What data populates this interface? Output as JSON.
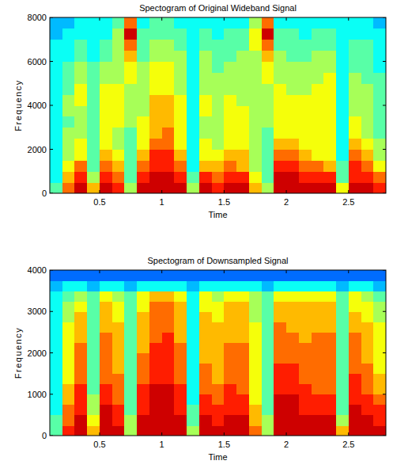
{
  "chart_data": [
    {
      "type": "heatmap",
      "title": "Spectogram of Original Wideband Signal",
      "xlabel": "Time",
      "ylabel": "Frequency",
      "x": [
        0.15,
        0.25,
        0.35,
        0.45,
        0.55,
        0.65,
        0.75,
        0.85,
        0.95,
        1.05,
        1.15,
        1.25,
        1.35,
        1.45,
        1.55,
        1.65,
        1.75,
        1.85,
        1.95,
        2.05,
        2.15,
        2.25,
        2.35,
        2.45,
        2.55,
        2.65,
        2.75
      ],
      "y": [
        250,
        750,
        1250,
        1750,
        2250,
        2750,
        3250,
        3750,
        4250,
        4750,
        5250,
        5750,
        6250,
        6750,
        7250,
        7750
      ],
      "values": [
        [
          4,
          3,
          3,
          3,
          3,
          3,
          3,
          3,
          3,
          3,
          3,
          3,
          3,
          3,
          2,
          2
        ],
        [
          8,
          7,
          6,
          5,
          5,
          5,
          4,
          5,
          5,
          4,
          4,
          4,
          3,
          3,
          3,
          2
        ],
        [
          10,
          9,
          8,
          6,
          6,
          5,
          5,
          5,
          6,
          6,
          5,
          5,
          4,
          4,
          3,
          3
        ],
        [
          7,
          5,
          4,
          4,
          4,
          4,
          4,
          4,
          4,
          4,
          4,
          4,
          3,
          3,
          3,
          3
        ],
        [
          10,
          9,
          8,
          7,
          6,
          6,
          6,
          6,
          6,
          6,
          5,
          5,
          4,
          4,
          3,
          3
        ],
        [
          9,
          8,
          7,
          6,
          5,
          5,
          6,
          6,
          6,
          6,
          5,
          5,
          5,
          5,
          5,
          4
        ],
        [
          5,
          4,
          4,
          4,
          4,
          4,
          5,
          5,
          5,
          5,
          6,
          6,
          7,
          8,
          10,
          8
        ],
        [
          10,
          9,
          8,
          7,
          6,
          6,
          6,
          5,
          5,
          5,
          5,
          5,
          4,
          4,
          4,
          3
        ],
        [
          10,
          10,
          9,
          9,
          8,
          7,
          7,
          7,
          7,
          6,
          6,
          6,
          5,
          5,
          4,
          4
        ],
        [
          10,
          10,
          9,
          9,
          8,
          8,
          7,
          7,
          7,
          6,
          6,
          6,
          5,
          5,
          4,
          4
        ],
        [
          10,
          9,
          8,
          7,
          6,
          6,
          6,
          6,
          6,
          5,
          5,
          5,
          5,
          4,
          4,
          3
        ],
        [
          5,
          4,
          3,
          3,
          3,
          3,
          3,
          3,
          3,
          3,
          3,
          3,
          3,
          3,
          3,
          3
        ],
        [
          10,
          9,
          7,
          6,
          6,
          5,
          5,
          6,
          6,
          5,
          5,
          5,
          5,
          4,
          4,
          3
        ],
        [
          9,
          8,
          7,
          6,
          5,
          5,
          5,
          5,
          5,
          5,
          5,
          4,
          4,
          4,
          3,
          3
        ],
        [
          10,
          9,
          8,
          7,
          6,
          6,
          6,
          6,
          6,
          5,
          5,
          5,
          4,
          4,
          4,
          3
        ],
        [
          10,
          9,
          7,
          7,
          6,
          6,
          6,
          6,
          5,
          5,
          5,
          5,
          5,
          4,
          4,
          3
        ],
        [
          7,
          6,
          5,
          5,
          5,
          5,
          5,
          5,
          5,
          5,
          5,
          5,
          5,
          6,
          6,
          5
        ],
        [
          5,
          4,
          4,
          4,
          4,
          4,
          5,
          5,
          5,
          5,
          6,
          6,
          7,
          8,
          10,
          8
        ],
        [
          10,
          10,
          9,
          8,
          7,
          6,
          6,
          6,
          6,
          6,
          5,
          5,
          5,
          4,
          4,
          3
        ],
        [
          10,
          10,
          9,
          8,
          7,
          6,
          6,
          6,
          6,
          5,
          5,
          5,
          4,
          4,
          4,
          3
        ],
        [
          10,
          9,
          8,
          7,
          6,
          6,
          6,
          6,
          6,
          5,
          5,
          5,
          4,
          4,
          3,
          3
        ],
        [
          10,
          9,
          8,
          6,
          6,
          6,
          6,
          6,
          6,
          6,
          5,
          5,
          5,
          4,
          4,
          3
        ],
        [
          10,
          9,
          7,
          6,
          6,
          6,
          6,
          6,
          6,
          6,
          6,
          5,
          5,
          4,
          4,
          3
        ],
        [
          6,
          4,
          4,
          3,
          3,
          3,
          3,
          3,
          3,
          3,
          3,
          3,
          3,
          3,
          3,
          3
        ],
        [
          10,
          9,
          9,
          8,
          7,
          6,
          6,
          5,
          5,
          5,
          5,
          4,
          4,
          4,
          3,
          3
        ],
        [
          10,
          9,
          8,
          7,
          6,
          5,
          5,
          5,
          5,
          5,
          4,
          4,
          4,
          4,
          3,
          3
        ],
        [
          9,
          8,
          6,
          5,
          5,
          4,
          4,
          4,
          4,
          4,
          4,
          3,
          3,
          3,
          3,
          2
        ]
      ],
      "xlim": [
        0.1,
        2.8
      ],
      "ylim": [
        0,
        8000
      ],
      "xticks": [
        0.5,
        1,
        1.5,
        2,
        2.5
      ],
      "yticks": [
        0,
        2000,
        4000,
        6000,
        8000
      ],
      "clim": [
        -2,
        11
      ]
    },
    {
      "type": "heatmap",
      "title": "Spectogram of Downsampled Signal",
      "xlabel": "Time",
      "ylabel": "Frequency",
      "x": [
        0.15,
        0.25,
        0.35,
        0.45,
        0.55,
        0.65,
        0.75,
        0.85,
        0.95,
        1.05,
        1.15,
        1.25,
        1.35,
        1.45,
        1.55,
        1.65,
        1.75,
        1.85,
        1.95,
        2.05,
        2.15,
        2.25,
        2.35,
        2.45,
        2.55,
        2.65,
        2.75
      ],
      "y": [
        125,
        375,
        625,
        875,
        1125,
        1375,
        1625,
        1875,
        2125,
        2375,
        2625,
        2875,
        3125,
        3375,
        3625,
        3875
      ],
      "values": [
        [
          4,
          4,
          3,
          3,
          3,
          3,
          3,
          3,
          3,
          3,
          3,
          3,
          3,
          3,
          2,
          1
        ],
        [
          9,
          8,
          8,
          7,
          7,
          6,
          6,
          6,
          6,
          6,
          6,
          5,
          5,
          4,
          3,
          1
        ],
        [
          10,
          10,
          9,
          9,
          9,
          8,
          8,
          8,
          8,
          7,
          7,
          7,
          6,
          5,
          3,
          1
        ],
        [
          7,
          6,
          5,
          5,
          4,
          4,
          4,
          4,
          4,
          4,
          4,
          4,
          4,
          4,
          2,
          1
        ],
        [
          10,
          10,
          10,
          9,
          9,
          8,
          8,
          8,
          8,
          8,
          7,
          7,
          7,
          6,
          3,
          1
        ],
        [
          10,
          9,
          9,
          8,
          8,
          8,
          7,
          7,
          7,
          7,
          7,
          6,
          6,
          5,
          3,
          1
        ],
        [
          5,
          5,
          4,
          4,
          4,
          4,
          4,
          4,
          4,
          4,
          4,
          4,
          4,
          4,
          2,
          1
        ],
        [
          10,
          10,
          9,
          9,
          9,
          8,
          8,
          8,
          7,
          7,
          7,
          7,
          6,
          6,
          3,
          1
        ],
        [
          10,
          10,
          10,
          10,
          10,
          9,
          9,
          9,
          9,
          8,
          8,
          8,
          8,
          7,
          3,
          1
        ],
        [
          10,
          10,
          10,
          10,
          10,
          9,
          9,
          9,
          9,
          9,
          8,
          8,
          8,
          7,
          3,
          1
        ],
        [
          10,
          10,
          9,
          9,
          9,
          8,
          8,
          8,
          8,
          7,
          7,
          7,
          7,
          6,
          3,
          1
        ],
        [
          5,
          4,
          4,
          3,
          3,
          3,
          3,
          3,
          3,
          3,
          3,
          3,
          3,
          3,
          2,
          1
        ],
        [
          10,
          10,
          9,
          9,
          8,
          8,
          8,
          7,
          7,
          7,
          7,
          7,
          6,
          6,
          3,
          1
        ],
        [
          10,
          9,
          9,
          8,
          8,
          7,
          7,
          7,
          7,
          7,
          7,
          6,
          6,
          5,
          3,
          1
        ],
        [
          10,
          10,
          9,
          9,
          9,
          8,
          8,
          8,
          8,
          7,
          7,
          7,
          7,
          6,
          3,
          1
        ],
        [
          10,
          10,
          9,
          9,
          8,
          8,
          8,
          8,
          8,
          7,
          7,
          7,
          7,
          6,
          3,
          1
        ],
        [
          8,
          7,
          7,
          6,
          6,
          6,
          6,
          6,
          6,
          6,
          6,
          5,
          5,
          5,
          3,
          1
        ],
        [
          5,
          5,
          4,
          4,
          4,
          4,
          4,
          4,
          4,
          4,
          4,
          4,
          4,
          4,
          2,
          1
        ],
        [
          10,
          10,
          10,
          10,
          9,
          9,
          9,
          8,
          8,
          8,
          8,
          7,
          7,
          6,
          3,
          1
        ],
        [
          10,
          10,
          10,
          10,
          9,
          9,
          9,
          8,
          8,
          8,
          7,
          7,
          7,
          6,
          3,
          1
        ],
        [
          10,
          10,
          9,
          9,
          9,
          8,
          8,
          8,
          8,
          7,
          7,
          7,
          7,
          6,
          3,
          1
        ],
        [
          10,
          10,
          9,
          9,
          8,
          8,
          8,
          8,
          8,
          8,
          7,
          7,
          7,
          6,
          3,
          1
        ],
        [
          10,
          10,
          9,
          9,
          8,
          8,
          8,
          8,
          8,
          8,
          7,
          7,
          7,
          6,
          3,
          1
        ],
        [
          7,
          5,
          4,
          4,
          4,
          4,
          4,
          4,
          4,
          4,
          4,
          4,
          4,
          4,
          2,
          1
        ],
        [
          10,
          10,
          10,
          9,
          9,
          9,
          8,
          8,
          8,
          8,
          7,
          7,
          6,
          6,
          3,
          1
        ],
        [
          10,
          10,
          9,
          9,
          8,
          8,
          8,
          7,
          7,
          7,
          7,
          6,
          6,
          5,
          3,
          1
        ],
        [
          10,
          9,
          9,
          8,
          7,
          7,
          6,
          6,
          6,
          6,
          6,
          5,
          5,
          4,
          2,
          1
        ]
      ],
      "xlim": [
        0.1,
        2.8
      ],
      "ylim": [
        0,
        4000
      ],
      "xticks": [
        0.5,
        1,
        1.5,
        2,
        2.5
      ],
      "yticks": [
        0,
        1000,
        2000,
        3000,
        4000
      ],
      "clim": [
        -2,
        11
      ]
    }
  ]
}
